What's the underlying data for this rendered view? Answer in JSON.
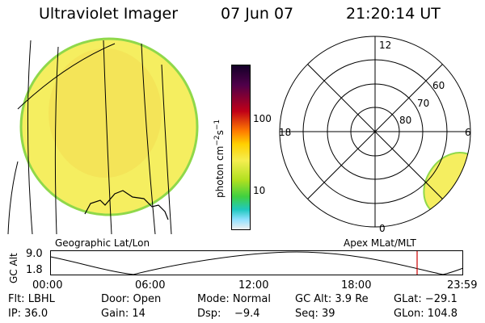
{
  "header": {
    "title": "Ultraviolet Imager",
    "date": "07 Jun 07",
    "time": "21:20:14 UT"
  },
  "left_panel": {
    "caption": "Geographic Lat/Lon"
  },
  "right_panel": {
    "caption": "Apex MLat/MLT",
    "mlt_labels": {
      "top": "12",
      "left": "18",
      "right": "6",
      "bottom": "0"
    },
    "lat_labels": [
      "60",
      "70",
      "80"
    ]
  },
  "colorbar": {
    "unit_main": "photon cm",
    "unit_exp1": "−2",
    "unit_mid": "s",
    "unit_exp2": "−1",
    "ticks": [
      "100",
      "10"
    ]
  },
  "timeline": {
    "ylabel": "GC Alt",
    "y_top": "9.0",
    "y_bottom": "1.8",
    "x_ticks": [
      "00:00",
      "06:00",
      "12:00",
      "18:00",
      "23:59"
    ],
    "marker_fraction": 0.89,
    "marker_color": "#cc0000"
  },
  "info": {
    "row1": {
      "flt": "Flt: LBHL",
      "door": "Door: Open",
      "mode": "Mode: Normal",
      "gcalt": "GC Alt: 3.9 Re",
      "glat": "GLat: −29.1"
    },
    "row2": {
      "ip": "IP: 36.0",
      "gain": "Gain: 14",
      "dsp": "Dsp:    −9.4",
      "seq": "Seq: 39",
      "glon": "GLon: 104.8"
    }
  },
  "colors": {
    "disk_fill": "#f5ee60",
    "disk_edge": "#8fd84a",
    "orange_band": "#ffa500"
  }
}
